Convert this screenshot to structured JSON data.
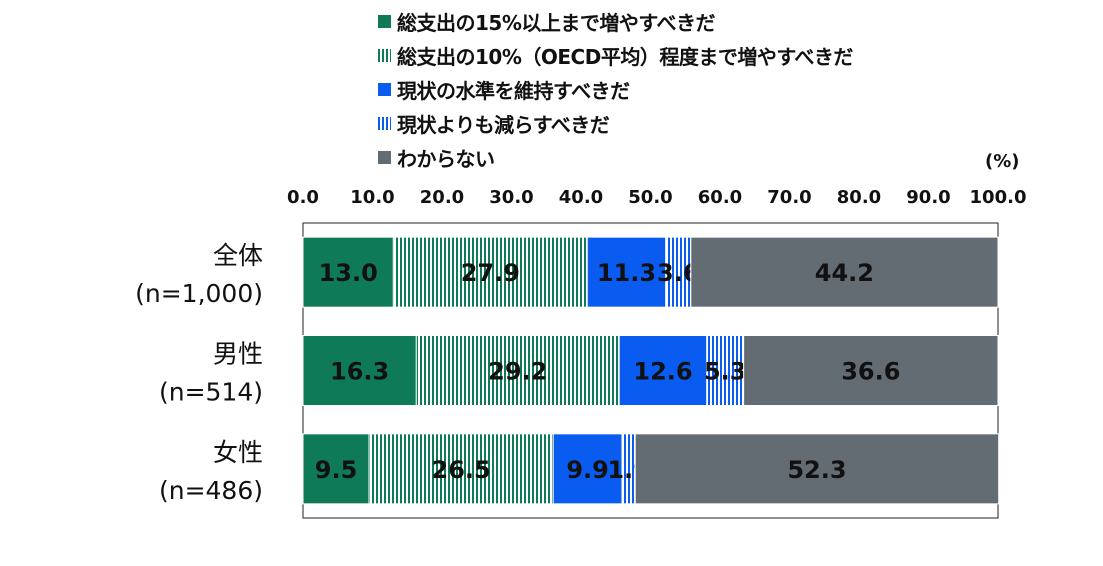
{
  "chart_data": {
    "type": "bar",
    "orientation": "horizontal",
    "stacked": true,
    "unit_label": "(%)",
    "xlim": [
      0,
      100
    ],
    "xticks": [
      "0.0",
      "10.0",
      "20.0",
      "30.0",
      "40.0",
      "50.0",
      "60.0",
      "70.0",
      "80.0",
      "90.0",
      "100.0"
    ],
    "categories": [
      {
        "name": "全体",
        "n": "(n=1,000)"
      },
      {
        "name": "男性",
        "n": "(n=514)"
      },
      {
        "name": "女性",
        "n": "(n=486)"
      }
    ],
    "series": [
      {
        "name": "総支出の15%以上まで増やすべきだ",
        "color": "#0f7a58",
        "pattern": "solid",
        "values": [
          13.0,
          16.3,
          9.5
        ]
      },
      {
        "name": "総支出の10%（OECD平均）程度まで増やすべきだ",
        "color": "#0f7a58",
        "pattern": "vertical-stripes",
        "values": [
          27.9,
          29.2,
          26.5
        ]
      },
      {
        "name": "現状の水準を維持すべきだ",
        "color": "#0a5cf0",
        "pattern": "solid",
        "values": [
          11.3,
          12.6,
          9.9
        ]
      },
      {
        "name": "現状よりも減らすべきだ",
        "color": "#0a5cf0",
        "pattern": "vertical-stripes",
        "values": [
          3.6,
          5.3,
          1.9
        ]
      },
      {
        "name": "わからない",
        "color": "#636b73",
        "pattern": "solid",
        "values": [
          44.2,
          36.6,
          52.3
        ]
      }
    ],
    "legend_position": "top"
  }
}
